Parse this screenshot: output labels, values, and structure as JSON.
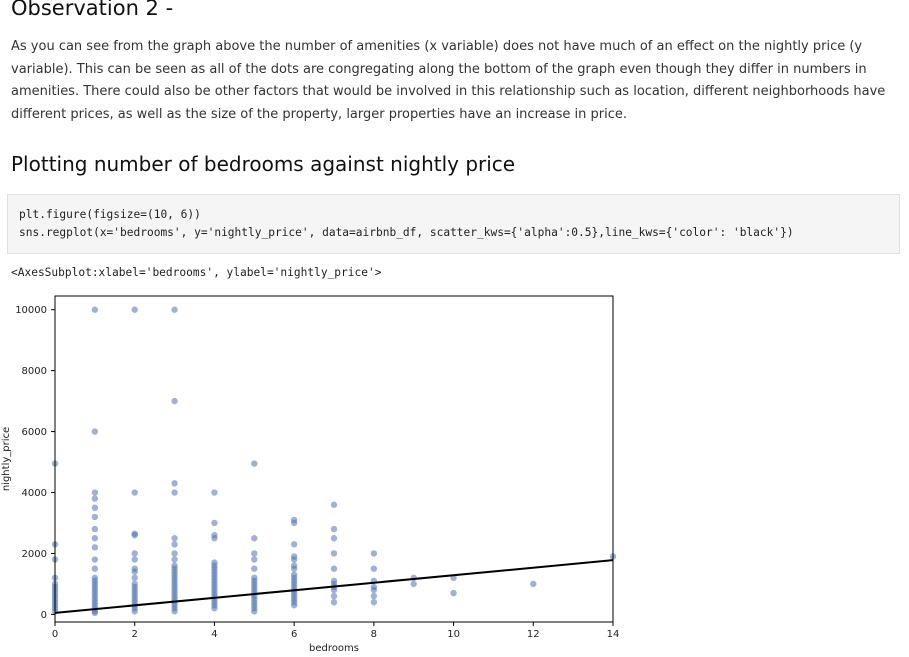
{
  "observation": {
    "heading": "Observation 2 -",
    "paragraph": "As you can see from the graph above the number of amenities (x variable) does not have much of an effect on the nightly price (y variable). This can be seen as all of the dots are congregating along the bottom of the graph even though they differ in numbers in amenities. There could also be other factors that would be involved in this relationship such as location, different neighborhoods have different prices, as well as the size of the property, larger properties have an increase in price."
  },
  "section_heading": "Plotting number of bedrooms against nightly price",
  "code": {
    "line1": "plt.figure(figsize=(10, 6))",
    "line2": "sns.regplot(x='bedrooms', y='nightly_price', data=airbnb_df, scatter_kws={'alpha':0.5},line_kws={'color': 'black'})"
  },
  "output_text": "<AxesSubplot:xlabel='bedrooms', ylabel='nightly_price'>",
  "colors": {
    "points": "#4c72b0",
    "regression_line": "#000000"
  },
  "chart_data": {
    "type": "scatter",
    "title": "",
    "xlabel": "bedrooms",
    "ylabel": "nightly_price",
    "xlim": [
      0,
      14
    ],
    "ylim": [
      -250,
      10450
    ],
    "x_ticks": [
      0,
      2,
      4,
      6,
      8,
      10,
      12,
      14
    ],
    "y_ticks": [
      0,
      2000,
      4000,
      6000,
      8000,
      10000
    ],
    "grid": false,
    "legend": "none",
    "regression_line": {
      "x": [
        0,
        14
      ],
      "y": [
        50,
        1780
      ]
    },
    "points": [
      {
        "x": 0,
        "y": 4950
      },
      {
        "x": 0,
        "y": 2300
      },
      {
        "x": 0,
        "y": 1800
      },
      {
        "x": 0,
        "y": 1200
      },
      {
        "x": 0,
        "y": 1000
      },
      {
        "x": 0,
        "y": 900
      },
      {
        "x": 0,
        "y": 800
      },
      {
        "x": 0,
        "y": 700
      },
      {
        "x": 0,
        "y": 600
      },
      {
        "x": 0,
        "y": 500
      },
      {
        "x": 0,
        "y": 400
      },
      {
        "x": 0,
        "y": 300
      },
      {
        "x": 0,
        "y": 200
      },
      {
        "x": 0,
        "y": 100
      },
      {
        "x": 1,
        "y": 10000
      },
      {
        "x": 1,
        "y": 6000
      },
      {
        "x": 1,
        "y": 4000
      },
      {
        "x": 1,
        "y": 3800
      },
      {
        "x": 1,
        "y": 3500
      },
      {
        "x": 1,
        "y": 3200
      },
      {
        "x": 1,
        "y": 2800
      },
      {
        "x": 1,
        "y": 2500
      },
      {
        "x": 1,
        "y": 2200
      },
      {
        "x": 1,
        "y": 1800
      },
      {
        "x": 1,
        "y": 1500
      },
      {
        "x": 1,
        "y": 1200
      },
      {
        "x": 1,
        "y": 1100
      },
      {
        "x": 1,
        "y": 1000
      },
      {
        "x": 1,
        "y": 900
      },
      {
        "x": 1,
        "y": 800
      },
      {
        "x": 1,
        "y": 700
      },
      {
        "x": 1,
        "y": 600
      },
      {
        "x": 1,
        "y": 500
      },
      {
        "x": 1,
        "y": 400
      },
      {
        "x": 1,
        "y": 300
      },
      {
        "x": 1,
        "y": 200
      },
      {
        "x": 1,
        "y": 100
      },
      {
        "x": 1,
        "y": 50
      },
      {
        "x": 2,
        "y": 10000
      },
      {
        "x": 2,
        "y": 4000
      },
      {
        "x": 2,
        "y": 2650
      },
      {
        "x": 2,
        "y": 2600
      },
      {
        "x": 2,
        "y": 2000
      },
      {
        "x": 2,
        "y": 1800
      },
      {
        "x": 2,
        "y": 1500
      },
      {
        "x": 2,
        "y": 1400
      },
      {
        "x": 2,
        "y": 1200
      },
      {
        "x": 2,
        "y": 1000
      },
      {
        "x": 2,
        "y": 900
      },
      {
        "x": 2,
        "y": 800
      },
      {
        "x": 2,
        "y": 700
      },
      {
        "x": 2,
        "y": 600
      },
      {
        "x": 2,
        "y": 500
      },
      {
        "x": 2,
        "y": 400
      },
      {
        "x": 2,
        "y": 300
      },
      {
        "x": 2,
        "y": 200
      },
      {
        "x": 2,
        "y": 100
      },
      {
        "x": 3,
        "y": 10000
      },
      {
        "x": 3,
        "y": 7000
      },
      {
        "x": 3,
        "y": 4300
      },
      {
        "x": 3,
        "y": 4000
      },
      {
        "x": 3,
        "y": 2500
      },
      {
        "x": 3,
        "y": 2300
      },
      {
        "x": 3,
        "y": 2000
      },
      {
        "x": 3,
        "y": 1800
      },
      {
        "x": 3,
        "y": 1600
      },
      {
        "x": 3,
        "y": 1500
      },
      {
        "x": 3,
        "y": 1400
      },
      {
        "x": 3,
        "y": 1300
      },
      {
        "x": 3,
        "y": 1200
      },
      {
        "x": 3,
        "y": 1100
      },
      {
        "x": 3,
        "y": 1000
      },
      {
        "x": 3,
        "y": 900
      },
      {
        "x": 3,
        "y": 800
      },
      {
        "x": 3,
        "y": 700
      },
      {
        "x": 3,
        "y": 600
      },
      {
        "x": 3,
        "y": 500
      },
      {
        "x": 3,
        "y": 400
      },
      {
        "x": 3,
        "y": 300
      },
      {
        "x": 3,
        "y": 200
      },
      {
        "x": 3,
        "y": 100
      },
      {
        "x": 4,
        "y": 4000
      },
      {
        "x": 4,
        "y": 3000
      },
      {
        "x": 4,
        "y": 2600
      },
      {
        "x": 4,
        "y": 2500
      },
      {
        "x": 4,
        "y": 1700
      },
      {
        "x": 4,
        "y": 1600
      },
      {
        "x": 4,
        "y": 1500
      },
      {
        "x": 4,
        "y": 1400
      },
      {
        "x": 4,
        "y": 1300
      },
      {
        "x": 4,
        "y": 1200
      },
      {
        "x": 4,
        "y": 1100
      },
      {
        "x": 4,
        "y": 1000
      },
      {
        "x": 4,
        "y": 900
      },
      {
        "x": 4,
        "y": 800
      },
      {
        "x": 4,
        "y": 700
      },
      {
        "x": 4,
        "y": 600
      },
      {
        "x": 4,
        "y": 500
      },
      {
        "x": 4,
        "y": 400
      },
      {
        "x": 4,
        "y": 300
      },
      {
        "x": 4,
        "y": 200
      },
      {
        "x": 5,
        "y": 4950
      },
      {
        "x": 5,
        "y": 2500
      },
      {
        "x": 5,
        "y": 2000
      },
      {
        "x": 5,
        "y": 1800
      },
      {
        "x": 5,
        "y": 1500
      },
      {
        "x": 5,
        "y": 1200
      },
      {
        "x": 5,
        "y": 1100
      },
      {
        "x": 5,
        "y": 1000
      },
      {
        "x": 5,
        "y": 900
      },
      {
        "x": 5,
        "y": 800
      },
      {
        "x": 5,
        "y": 700
      },
      {
        "x": 5,
        "y": 600
      },
      {
        "x": 5,
        "y": 500
      },
      {
        "x": 5,
        "y": 400
      },
      {
        "x": 5,
        "y": 300
      },
      {
        "x": 5,
        "y": 200
      },
      {
        "x": 5,
        "y": 100
      },
      {
        "x": 6,
        "y": 3100
      },
      {
        "x": 6,
        "y": 3000
      },
      {
        "x": 6,
        "y": 2300
      },
      {
        "x": 6,
        "y": 1900
      },
      {
        "x": 6,
        "y": 1800
      },
      {
        "x": 6,
        "y": 1600
      },
      {
        "x": 6,
        "y": 1500
      },
      {
        "x": 6,
        "y": 1300
      },
      {
        "x": 6,
        "y": 1200
      },
      {
        "x": 6,
        "y": 1100
      },
      {
        "x": 6,
        "y": 1000
      },
      {
        "x": 6,
        "y": 900
      },
      {
        "x": 6,
        "y": 800
      },
      {
        "x": 6,
        "y": 700
      },
      {
        "x": 6,
        "y": 600
      },
      {
        "x": 6,
        "y": 500
      },
      {
        "x": 6,
        "y": 400
      },
      {
        "x": 6,
        "y": 300
      },
      {
        "x": 7,
        "y": 3600
      },
      {
        "x": 7,
        "y": 2800
      },
      {
        "x": 7,
        "y": 2500
      },
      {
        "x": 7,
        "y": 2000
      },
      {
        "x": 7,
        "y": 1500
      },
      {
        "x": 7,
        "y": 1100
      },
      {
        "x": 7,
        "y": 1000
      },
      {
        "x": 7,
        "y": 900
      },
      {
        "x": 7,
        "y": 800
      },
      {
        "x": 7,
        "y": 600
      },
      {
        "x": 7,
        "y": 400
      },
      {
        "x": 8,
        "y": 2000
      },
      {
        "x": 8,
        "y": 1500
      },
      {
        "x": 8,
        "y": 1100
      },
      {
        "x": 8,
        "y": 900
      },
      {
        "x": 8,
        "y": 800
      },
      {
        "x": 8,
        "y": 600
      },
      {
        "x": 8,
        "y": 400
      },
      {
        "x": 9,
        "y": 1200
      },
      {
        "x": 9,
        "y": 1000
      },
      {
        "x": 10,
        "y": 1200
      },
      {
        "x": 10,
        "y": 700
      },
      {
        "x": 12,
        "y": 1000
      },
      {
        "x": 14,
        "y": 1900
      }
    ]
  }
}
